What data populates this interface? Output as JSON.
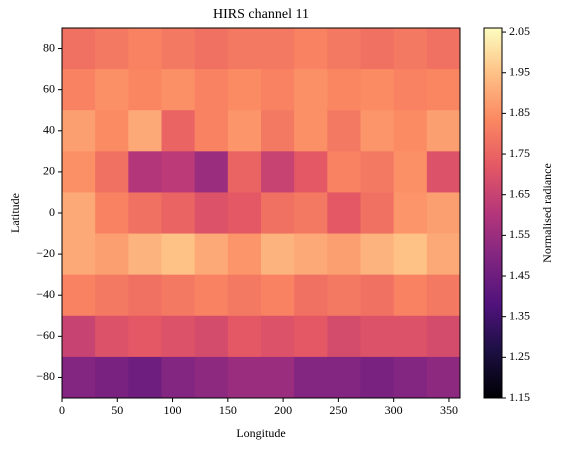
{
  "chart_data": {
    "type": "heatmap",
    "title": "HIRS channel 11",
    "x_label": "Longitude",
    "y_label": "Latitude",
    "colorbar_label": "Normalised radiance",
    "colormap": "magma",
    "x": [
      15,
      45,
      75,
      105,
      135,
      165,
      195,
      225,
      255,
      285,
      315,
      345
    ],
    "y": [
      80,
      60,
      40,
      20,
      0,
      -20,
      -40,
      -60,
      -80
    ],
    "values": [
      [
        1.78,
        1.8,
        1.82,
        1.8,
        1.78,
        1.8,
        1.8,
        1.82,
        1.8,
        1.78,
        1.8,
        1.78
      ],
      [
        1.82,
        1.85,
        1.83,
        1.85,
        1.82,
        1.84,
        1.82,
        1.85,
        1.83,
        1.84,
        1.82,
        1.83
      ],
      [
        1.88,
        1.84,
        1.9,
        1.75,
        1.82,
        1.86,
        1.8,
        1.85,
        1.8,
        1.86,
        1.84,
        1.88
      ],
      [
        1.85,
        1.78,
        1.6,
        1.62,
        1.55,
        1.75,
        1.65,
        1.72,
        1.82,
        1.8,
        1.85,
        1.7
      ],
      [
        1.9,
        1.82,
        1.78,
        1.75,
        1.7,
        1.72,
        1.78,
        1.8,
        1.72,
        1.78,
        1.86,
        1.88
      ],
      [
        1.9,
        1.88,
        1.92,
        1.95,
        1.9,
        1.86,
        1.92,
        1.9,
        1.88,
        1.92,
        1.95,
        1.9
      ],
      [
        1.82,
        1.8,
        1.78,
        1.8,
        1.82,
        1.8,
        1.82,
        1.78,
        1.8,
        1.78,
        1.82,
        1.8
      ],
      [
        1.65,
        1.7,
        1.72,
        1.7,
        1.68,
        1.72,
        1.7,
        1.72,
        1.68,
        1.7,
        1.7,
        1.68
      ],
      [
        1.5,
        1.48,
        1.45,
        1.5,
        1.52,
        1.55,
        1.55,
        1.5,
        1.5,
        1.48,
        1.5,
        1.52
      ]
    ],
    "xlim": [
      0,
      360
    ],
    "xticks": [
      0,
      50,
      100,
      150,
      200,
      250,
      300,
      350
    ],
    "ylim": [
      -90,
      90
    ],
    "yticks": [
      {
        "value": -80,
        "label": "−80"
      },
      {
        "value": -60,
        "label": "−60"
      },
      {
        "value": -40,
        "label": "−40"
      },
      {
        "value": -20,
        "label": "−20"
      },
      0,
      20,
      40,
      60,
      80
    ],
    "clim": [
      1.15,
      2.06
    ],
    "cticks": [
      1.15,
      1.25,
      1.35,
      1.45,
      1.55,
      1.65,
      1.75,
      1.85,
      1.95,
      2.05
    ]
  }
}
